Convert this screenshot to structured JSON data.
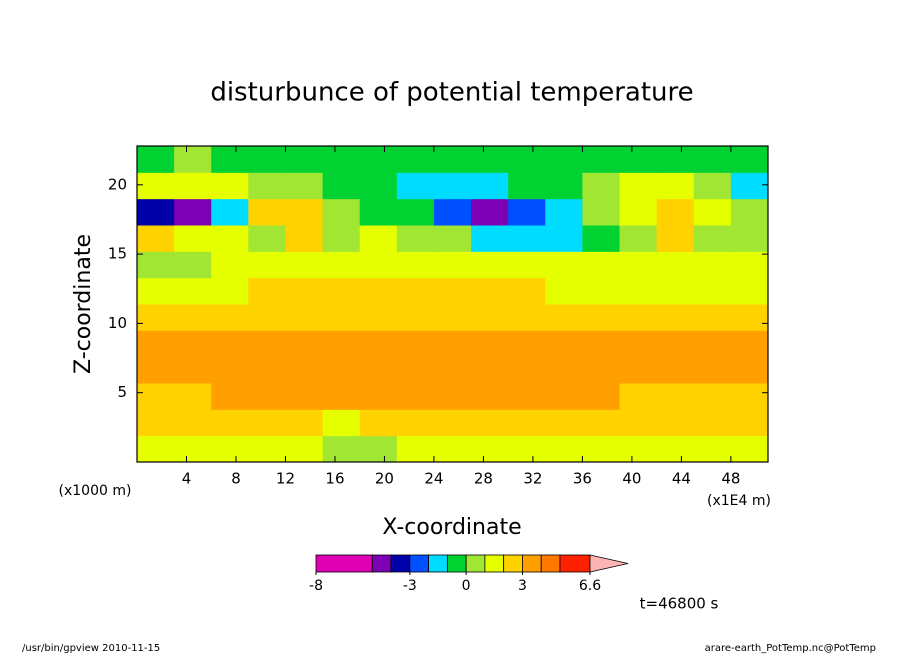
{
  "chart_data": {
    "type": "contour",
    "title": "disturbunce of potential temperature",
    "x_label": "X-coordinate",
    "y_label": "Z-coordinate",
    "x_unit": "(x1E4 m)",
    "y_unit": "(x1000 m)",
    "time_label": "t=46800 s",
    "footer_left": "/usr/bin/gpview  2010-11-15",
    "footer_right": "arare-earth_PotTemp.nc@PotTemp",
    "xlim": [
      0,
      51
    ],
    "ylim": [
      0,
      22.8
    ],
    "xticks": [
      4,
      8,
      12,
      16,
      20,
      24,
      28,
      32,
      36,
      40,
      44,
      48
    ],
    "yticks": [
      5,
      10,
      15,
      20
    ],
    "x": [
      1.5,
      4.5,
      7.5,
      10.5,
      13.5,
      16.5,
      19.5,
      22.5,
      25.5,
      28.5,
      31.5,
      34.5,
      37.5,
      40.5,
      43.5,
      46.5,
      49.5
    ],
    "y": [
      0.95,
      2.85,
      4.75,
      6.65,
      8.55,
      10.45,
      12.35,
      14.25,
      16.15,
      18.05,
      19.95,
      21.85
    ],
    "z": [
      [
        1.5,
        1.5,
        1.2,
        1.5,
        1.5,
        0.6,
        0.8,
        1.5,
        1.5,
        1.5,
        1.5,
        1.5,
        1.5,
        1.5,
        1.5,
        1.5,
        1.5
      ],
      [
        2.4,
        2.5,
        2.5,
        2.5,
        2.5,
        1.4,
        2.2,
        2.5,
        2.5,
        2.5,
        2.5,
        2.5,
        2.5,
        2.5,
        2.5,
        2.5,
        2.4
      ],
      [
        2.6,
        2.6,
        3.2,
        3.3,
        3.3,
        3.4,
        3.5,
        3.6,
        3.6,
        3.5,
        3.4,
        3.3,
        3.3,
        2.8,
        2.6,
        2.5,
        2.5
      ],
      [
        3.4,
        3.5,
        3.5,
        3.5,
        3.5,
        3.6,
        3.7,
        3.6,
        3.6,
        3.8,
        3.5,
        3.5,
        3.5,
        3.5,
        3.5,
        3.4,
        3.4
      ],
      [
        3.2,
        3.3,
        3.3,
        3.2,
        3.2,
        3.4,
        3.3,
        3.2,
        3.2,
        3.2,
        3.2,
        3.2,
        3.2,
        3.3,
        3.2,
        3.2,
        3.2
      ],
      [
        2.5,
        2.6,
        2.7,
        2.4,
        2.5,
        2.8,
        2.6,
        2.5,
        2.5,
        2.3,
        2.5,
        2.5,
        2.5,
        2.5,
        2.5,
        2.5,
        2.5
      ],
      [
        1.6,
        1.7,
        1.8,
        2.2,
        2.3,
        2.4,
        2.2,
        2.2,
        2.1,
        2.2,
        2.1,
        1.8,
        1.7,
        1.6,
        1.6,
        1.6,
        1.6
      ],
      [
        0.6,
        0.8,
        1.3,
        1.4,
        1.5,
        1.3,
        1.4,
        1.4,
        1.5,
        1.5,
        1.4,
        1.3,
        1.4,
        1.4,
        1.3,
        1.3,
        1.2
      ],
      [
        2.2,
        1.6,
        1.2,
        0.6,
        2.1,
        0.4,
        1.3,
        0.5,
        0.3,
        -1.2,
        -1.5,
        -1.4,
        -0.8,
        0.3,
        2.8,
        0.5,
        0.2
      ],
      [
        -3.5,
        -4.6,
        -1.5,
        2.3,
        2.4,
        0.6,
        -0.5,
        -0.8,
        -2.8,
        -4.6,
        -3.0,
        -1.6,
        0.5,
        1.5,
        2.6,
        1.4,
        0.4
      ],
      [
        1.3,
        1.4,
        1.2,
        0.6,
        0.5,
        -0.3,
        -0.6,
        -1.2,
        -1.8,
        -1.5,
        -0.8,
        -0.4,
        0.5,
        1.2,
        1.1,
        0.8,
        -1.4
      ],
      [
        -0.5,
        0.5,
        -0.4,
        -0.6,
        -0.6,
        -0.5,
        -0.6,
        -0.5,
        -0.6,
        -0.5,
        -0.6,
        -0.5,
        -0.6,
        -0.5,
        -0.6,
        -0.5,
        -0.6
      ]
    ],
    "levels": [
      -8,
      -5,
      -4,
      -3,
      -2,
      -1,
      0,
      1,
      2,
      3,
      4,
      5,
      6.6
    ],
    "colors": [
      "#e000b4",
      "#7c00b4",
      "#0000a8",
      "#0050ff",
      "#00dcff",
      "#00d232",
      "#a0e632",
      "#e6ff00",
      "#ffd200",
      "#ffa000",
      "#ff7800",
      "#ff2000"
    ],
    "over_color": "#ffb4b4",
    "colorbar_ticks": [
      -8,
      -3,
      0,
      3,
      6.6
    ]
  }
}
